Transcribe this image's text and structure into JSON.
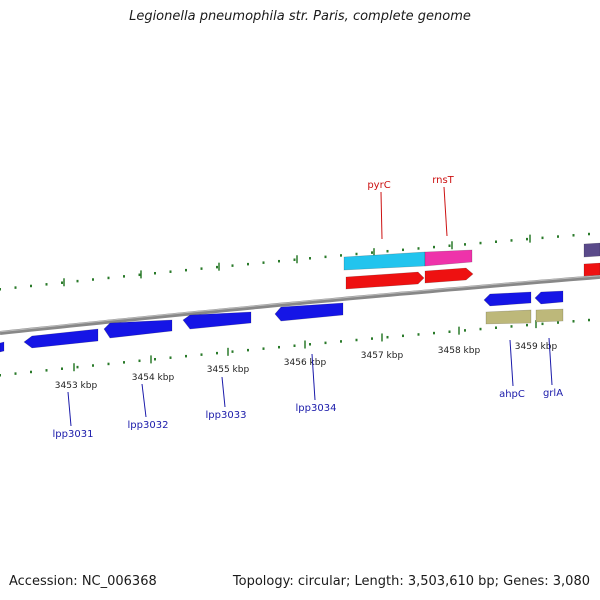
{
  "title": "Legionella pneumophila str. Paris, complete genome",
  "footer": {
    "accession": "Accession: NC_006368",
    "summary": "Topology: circular; Length: 3,503,610 bp; Genes: 3,080"
  },
  "colors": {
    "backbone": "#888888",
    "tick": "#2a7a2a",
    "cds_blue": "#1515e6",
    "rna_red": "#ee1111",
    "cyan": "#22c4ee",
    "magenta": "#ee33aa",
    "khaki": "#bdb87a",
    "purple": "#5a4a8a",
    "label_blue": "#1a1aaa",
    "label_red": "#cc1111"
  },
  "kbp_labels": [
    "3453 kbp",
    "3454 kbp",
    "3455 kbp",
    "3456 kbp",
    "3457 kbp",
    "3458 kbp",
    "3459 kbp"
  ],
  "genes_top": [
    {
      "name": "pyrC",
      "color": "label_red"
    },
    {
      "name": "rnsT",
      "color": "label_red"
    }
  ],
  "genes_bottom": [
    {
      "name": "lpp3031"
    },
    {
      "name": "lpp3032"
    },
    {
      "name": "lpp3033"
    },
    {
      "name": "lpp3034"
    },
    {
      "name": "ahpC"
    },
    {
      "name": "grlA"
    }
  ]
}
